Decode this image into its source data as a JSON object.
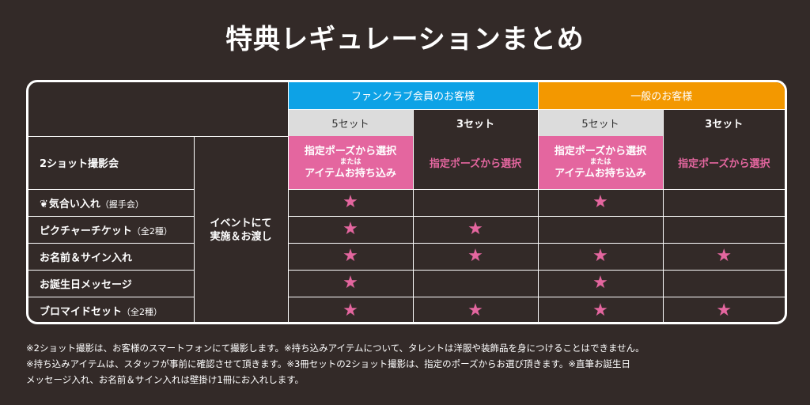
{
  "title": "特典レギュレーションまとめ",
  "table": {
    "group_headers": {
      "fan": "ファンクラブ会員のお客様",
      "general": "一般のお客様"
    },
    "sub_headers": [
      "5セット",
      "3セット",
      "5セット",
      "3セット"
    ],
    "event_note": {
      "line1": "イベントにて",
      "line2": "実施＆お渡し"
    },
    "rows": [
      {
        "label": "2ショット撮影会",
        "label_small": "",
        "cells": [
          {
            "kind": "pink-box",
            "line1": "指定ポーズから選択",
            "mini": "または",
            "line2": "アイテムお持ち込み"
          },
          {
            "kind": "pink-text",
            "text": "指定ポーズから選択"
          },
          {
            "kind": "pink-box",
            "line1": "指定ポーズから選択",
            "mini": "または",
            "line2": "アイテムお持ち込み"
          },
          {
            "kind": "pink-text",
            "text": "指定ポーズから選択"
          }
        ]
      },
      {
        "label": "気合い入れ",
        "label_small": "（握手会）",
        "icon": "kiai-icon",
        "cells": [
          {
            "kind": "star"
          },
          {
            "kind": "empty"
          },
          {
            "kind": "star"
          },
          {
            "kind": "empty"
          }
        ]
      },
      {
        "label": "ピクチャーチケット",
        "label_small": "（全2種）",
        "cells": [
          {
            "kind": "star"
          },
          {
            "kind": "star"
          },
          {
            "kind": "empty"
          },
          {
            "kind": "empty"
          }
        ]
      },
      {
        "label": "お名前＆サイン入れ",
        "label_small": "",
        "cells": [
          {
            "kind": "star"
          },
          {
            "kind": "star"
          },
          {
            "kind": "star"
          },
          {
            "kind": "star"
          }
        ]
      },
      {
        "label": "お誕生日メッセージ",
        "label_small": "",
        "cells": [
          {
            "kind": "star"
          },
          {
            "kind": "empty"
          },
          {
            "kind": "star"
          },
          {
            "kind": "empty"
          }
        ]
      },
      {
        "label": "ブロマイドセット",
        "label_small": "（全2種）",
        "cells": [
          {
            "kind": "star"
          },
          {
            "kind": "star"
          },
          {
            "kind": "star"
          },
          {
            "kind": "star"
          }
        ]
      }
    ],
    "star_glyph": "★",
    "colors": {
      "background": "#332a28",
      "fan_blue": "#0da2e6",
      "general_orange": "#f39800",
      "pink": "#e4669f",
      "gray": "#dcdcdc"
    }
  },
  "notes": [
    "※2ショット撮影は、お客様のスマートフォンにて撮影します。※持ち込みアイテムについて、タレントは洋服や装飾品を身につけることはできません。",
    "※持ち込みアイテムは、スタッフが事前に確認させて頂きます。※3冊セットの2ショット撮影は、指定のポーズからお選び頂きます。※直筆お誕生日",
    "メッセージ入れ、お名前＆サイン入れは壁掛け1冊にお入れします。"
  ]
}
